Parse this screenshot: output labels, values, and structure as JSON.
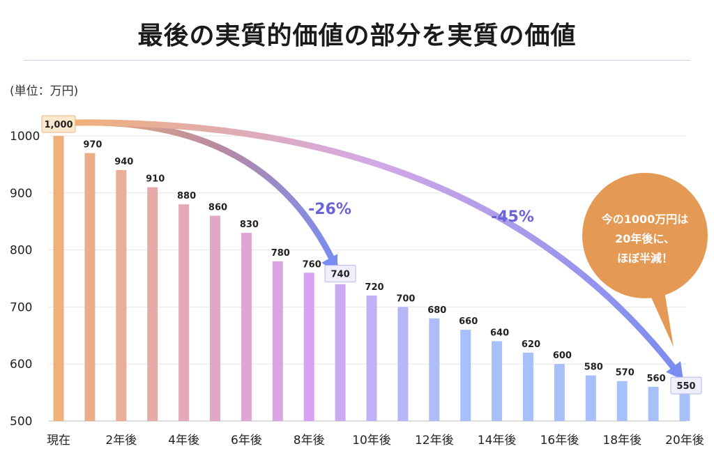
{
  "title": "最後の実質的価値の部分を実質の価値",
  "unit_label": "(単位：万円)",
  "chart_data": {
    "type": "bar",
    "categories": [
      "現在",
      "",
      "2年後",
      "",
      "4年後",
      "",
      "6年後",
      "",
      "8年後",
      "",
      "10年後",
      "",
      "12年後",
      "",
      "14年後",
      "",
      "16年後",
      "",
      "18年後",
      "",
      "20年後"
    ],
    "values": [
      1000,
      970,
      940,
      910,
      880,
      860,
      830,
      780,
      760,
      740,
      720,
      700,
      680,
      660,
      640,
      620,
      600,
      580,
      570,
      560,
      550
    ],
    "value_labels": [
      "1,000",
      "970",
      "940",
      "910",
      "880",
      "860",
      "830",
      "780",
      "760",
      "740",
      "720",
      "700",
      "680",
      "660",
      "640",
      "620",
      "600",
      "580",
      "570",
      "560",
      "550"
    ],
    "ylim": [
      500,
      1000
    ],
    "yticks": [
      "500",
      "600",
      "700",
      "800",
      "900",
      "1000"
    ],
    "grid": true,
    "annotations": [
      {
        "text": "-26%",
        "from_category_index": 0,
        "to_category_index": 9
      },
      {
        "text": "-45%",
        "from_category_index": 0,
        "to_category_index": 20
      }
    ],
    "callout": [
      "今の1000万円は",
      "20年後に、",
      "ほぼ半減！"
    ]
  },
  "colors": {
    "bar_start": "#efb07a",
    "bar_mid": "#d8a2f2",
    "bar_end": "#a8c0fa",
    "arrow_end": "#7a8cf0",
    "callout": "#e49a55",
    "pct_text": "#6b63d8"
  }
}
